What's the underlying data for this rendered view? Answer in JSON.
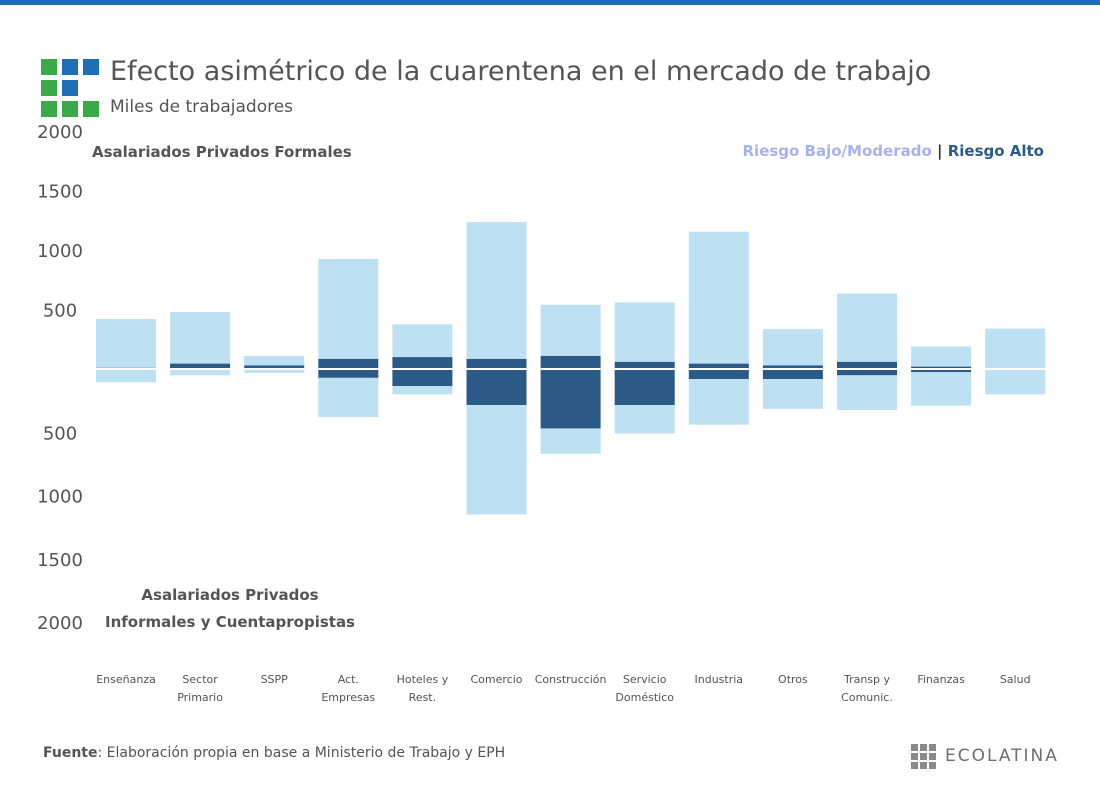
{
  "header": {
    "title": "Efecto asimétrico de la cuarentena en el mercado de trabajo",
    "subtitle": "Miles de trabajadores"
  },
  "legend": {
    "low_label": "Riesgo Bajo/Moderado",
    "separator": "|",
    "high_label": "Riesgo Alto"
  },
  "footer": {
    "source_label": "Fuente",
    "source_text": ": Elaboración propia en base a Ministerio de Trabajo y EPH",
    "brand": "ECOLATINA"
  },
  "colors": {
    "top_bar": "#1c6fb6",
    "risk_low": "#bde0f2",
    "risk_high": "#2b5a87",
    "logo_green": "#3aaa49",
    "logo_blue": "#1c6fb6"
  },
  "chart_data": {
    "type": "bar",
    "layout": "diverging-stacked",
    "title": "Efecto asimétrico de la cuarentena en el mercado de trabajo",
    "subtitle": "Miles de trabajadores",
    "categories": [
      [
        "Enseñanza"
      ],
      [
        "Sector",
        "Primario"
      ],
      [
        "SSPP"
      ],
      [
        "Act.",
        "Empresas"
      ],
      [
        "Hoteles y",
        "Rest."
      ],
      [
        "Comercio"
      ],
      [
        "Construcción"
      ],
      [
        "Servicio",
        "Doméstico"
      ],
      [
        "Industria"
      ],
      [
        "Otros"
      ],
      [
        "Transp y",
        "Comunic."
      ],
      [
        "Finanzas"
      ],
      [
        "Salud"
      ]
    ],
    "y_tick_labels_top": [
      "2000",
      "1500",
      "1000",
      "500"
    ],
    "y_tick_labels_bottom": [
      "500",
      "1000",
      "1500",
      "2000"
    ],
    "upper_panel": {
      "label": "Asalariados Privados Formales",
      "ylim": [
        0,
        1850
      ],
      "series": [
        {
          "name": "Riesgo Bajo/Moderado",
          "values": [
            410,
            435,
            80,
            840,
            275,
            1150,
            430,
            500,
            1110,
            305,
            575,
            170,
            340
          ]
        },
        {
          "name": "Riesgo Alto",
          "values": [
            10,
            45,
            30,
            85,
            100,
            85,
            110,
            60,
            45,
            30,
            60,
            20,
            0
          ]
        }
      ]
    },
    "lower_panel": {
      "label_lines": [
        "Asalariados Privados",
        "Informales y Cuentapropistas"
      ],
      "ylim": [
        0,
        2000
      ],
      "series": [
        {
          "name": "Riesgo Alto",
          "values": [
            0,
            0,
            0,
            70,
            135,
            285,
            470,
            285,
            80,
            80,
            50,
            25,
            0
          ]
        },
        {
          "name": "Riesgo Bajo/Moderado",
          "values": [
            105,
            50,
            30,
            310,
            65,
            865,
            200,
            225,
            360,
            235,
            275,
            265,
            200
          ]
        }
      ]
    },
    "legend_position": "top-right",
    "grid": false
  }
}
